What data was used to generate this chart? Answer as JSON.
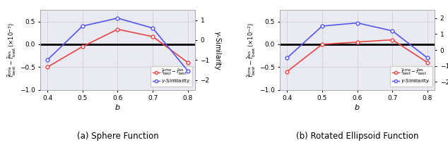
{
  "b_values": [
    0.4,
    0.5,
    0.6,
    0.7,
    0.8
  ],
  "sphere": {
    "red_y": [
      -0.5,
      -0.05,
      0.33,
      0.17,
      -0.4
    ],
    "blue_y": [
      -1.0,
      0.7,
      1.1,
      0.6,
      -1.55
    ],
    "ylabel_left": "$\\bar{f}_{\\mathrm{best}}^{\\mathrm{cma}} - \\bar{f}_{\\mathrm{best}}^{\\mathrm{ws}}\\,(\\times 10^{-3})$",
    "ylim_left": [
      -1.0,
      0.75
    ],
    "ylim_right": [
      -2.5,
      1.5
    ],
    "yticks_left": [
      -1.0,
      -0.5,
      0.0,
      0.5
    ],
    "yticks_right": [
      -2,
      -1,
      0,
      1
    ],
    "title": "(a) Sphere Function"
  },
  "ellipsoid": {
    "red_y": [
      -0.6,
      0.0,
      0.05,
      0.1,
      -0.4
    ],
    "blue_y": [
      -0.5,
      1.5,
      1.7,
      1.2,
      -0.5
    ],
    "ylabel_left": "$\\bar{f}_{\\mathrm{best}}^{\\mathrm{cma}} - \\bar{f}_{\\mathrm{best}}^{\\mathrm{ws}}\\,(\\times 10^{-2})$",
    "ylim_left": [
      -1.0,
      0.75
    ],
    "ylim_right": [
      -2.5,
      2.5
    ],
    "yticks_left": [
      -1.0,
      -0.5,
      0.0,
      0.5
    ],
    "yticks_right": [
      -2,
      -1,
      0,
      1,
      2
    ],
    "title": "(b) Rotated Ellipsoid Function"
  },
  "red_color": "#e84444",
  "blue_color": "#5555ee",
  "xlabel": "$b$",
  "ylabel_right": "$\\gamma$-Similarity",
  "legend_red": "$\\bar{f}_{\\mathrm{best}}^{\\mathrm{cma}} - \\bar{f}_{\\mathrm{best}}^{\\mathrm{ws}}$",
  "legend_blue": "$\\gamma$-Similarity",
  "grid_color": "#d0d0d0",
  "hline_color": "black",
  "bg_color": "#eaeaf2"
}
